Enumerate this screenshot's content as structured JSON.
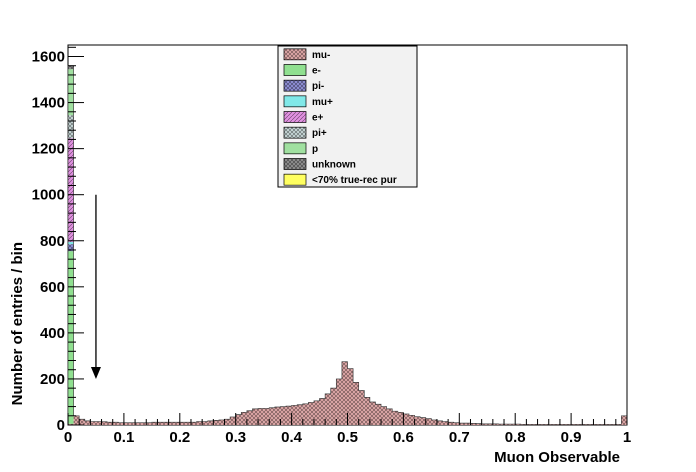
{
  "chart_data": {
    "type": "bar",
    "title": "",
    "xlabel": "Muon Observable",
    "ylabel": "Number of entries / bin",
    "xlim": [
      0,
      1
    ],
    "ylim": [
      0,
      1650
    ],
    "x_ticks": [
      0,
      0.1,
      0.2,
      0.3,
      0.4,
      0.5,
      0.6,
      0.7,
      0.8,
      0.9,
      1
    ],
    "x_tick_labels": [
      "0",
      "0.1",
      "0.2",
      "0.3",
      "0.4",
      "0.5",
      "0.6",
      "0.7",
      "0.8",
      "0.9",
      "1"
    ],
    "y_ticks": [
      0,
      200,
      400,
      600,
      800,
      1000,
      1200,
      1400,
      1600
    ],
    "y_tick_labels": [
      "0",
      "200",
      "400",
      "600",
      "800",
      "1000",
      "1200",
      "1400",
      "1600"
    ],
    "bin_width": 0.01,
    "grid": false,
    "legend_position": "top-center",
    "stack_order": [
      "mu-",
      "e-",
      "pi-",
      "mu+",
      "e+",
      "pi+",
      "p",
      "unknown",
      "<70% true-rec pur"
    ],
    "stack_colors": [
      "#e0a8a8",
      "#90e090",
      "#9090d8",
      "#80e8e8",
      "#e090e0",
      "#c8d8d8",
      "#a0e0a0",
      "#909090",
      "#ffff60"
    ],
    "total_counts": [
      1560,
      40,
      25,
      18,
      15,
      15,
      14,
      12,
      12,
      10,
      10,
      10,
      10,
      10,
      10,
      12,
      12,
      12,
      12,
      12,
      12,
      12,
      12,
      15,
      15,
      18,
      20,
      22,
      25,
      35,
      45,
      55,
      62,
      70,
      72,
      72,
      75,
      78,
      80,
      82,
      85,
      88,
      92,
      98,
      105,
      115,
      135,
      160,
      200,
      275,
      245,
      185,
      150,
      120,
      100,
      90,
      80,
      70,
      60,
      55,
      48,
      42,
      36,
      32,
      28,
      22,
      18,
      15,
      12,
      10,
      8,
      8,
      7,
      6,
      5,
      5,
      5,
      4,
      4,
      4,
      4,
      3,
      3,
      3,
      3,
      3,
      3,
      3,
      3,
      3,
      3,
      3,
      3,
      3,
      3,
      3,
      3,
      3,
      3,
      40
    ],
    "first_bin_breakdown": {
      "mu-": 5,
      "e-": 750,
      "pi-": 30,
      "mu+": 10,
      "e+": 450,
      "pi+": 100,
      "p": 200,
      "unknown": 15
    },
    "annotations": [
      {
        "type": "arrow",
        "x": 0.05,
        "y_from": 1000,
        "y_to": 200
      }
    ],
    "legend": [
      {
        "label": "mu-",
        "color": "#e0a8a8",
        "hatch": "cross"
      },
      {
        "label": "e-",
        "color": "#90e090",
        "hatch": "none"
      },
      {
        "label": "pi-",
        "color": "#9090d8",
        "hatch": "cross"
      },
      {
        "label": "mu+",
        "color": "#80e8e8",
        "hatch": "none"
      },
      {
        "label": "e+",
        "color": "#e090e0",
        "hatch": "diagonal"
      },
      {
        "label": "pi+",
        "color": "#c8d8d8",
        "hatch": "cross"
      },
      {
        "label": "p",
        "color": "#a0e0a0",
        "hatch": "none"
      },
      {
        "label": "unknown",
        "color": "#909090",
        "hatch": "cross"
      },
      {
        "label": "<70% true-rec pur",
        "color": "#ffff60",
        "hatch": "none"
      }
    ]
  }
}
